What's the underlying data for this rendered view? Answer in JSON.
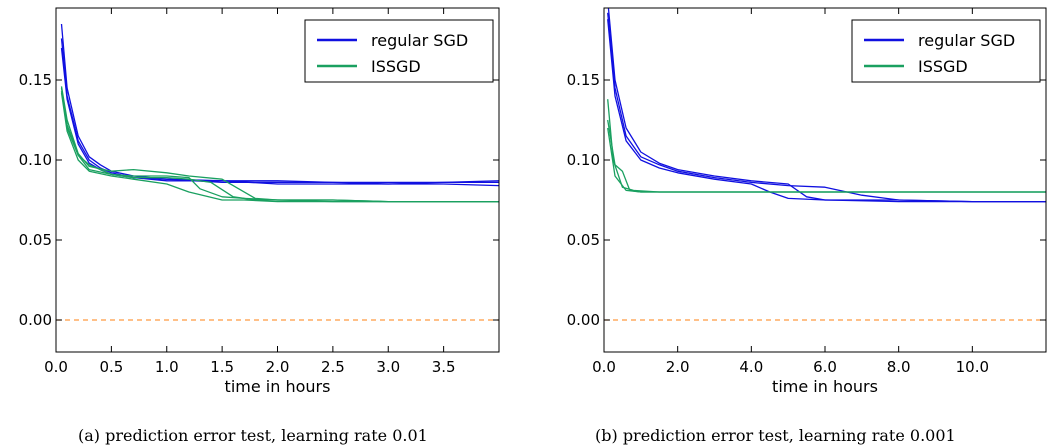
{
  "chart_data": [
    {
      "type": "line",
      "caption": "(a) prediction error test, learning rate 0.01",
      "xlabel": "time in hours",
      "ylabel": "",
      "xlim": [
        0.0,
        4.0
      ],
      "ylim": [
        -0.02,
        0.195
      ],
      "xticks": [
        0.0,
        0.5,
        1.0,
        1.5,
        2.0,
        2.5,
        3.0,
        3.5
      ],
      "xtick_labels": [
        "0.0",
        "0.5",
        "1.0",
        "1.5",
        "2.0",
        "2.5",
        "3.0",
        "3.5"
      ],
      "yticks": [
        0.0,
        0.05,
        0.1,
        0.15
      ],
      "ytick_labels": [
        "0.00",
        "0.05",
        "0.10",
        "0.15"
      ],
      "legend_position": "top-right",
      "legend": [
        {
          "name": "regular SGD",
          "color": "#1010e0"
        },
        {
          "name": "ISSGD",
          "color": "#1aa060"
        }
      ],
      "reference_line": {
        "y": 0.0,
        "color": "#ff9b40",
        "style": "dashed"
      },
      "series": [
        {
          "group": "regular SGD",
          "color": "#1010e0",
          "x": [
            0.05,
            0.1,
            0.2,
            0.3,
            0.4,
            0.5,
            0.7,
            1.0,
            1.5,
            2.0,
            2.5,
            3.0,
            3.5,
            4.0
          ],
          "y": [
            0.185,
            0.145,
            0.115,
            0.102,
            0.097,
            0.093,
            0.09,
            0.088,
            0.087,
            0.087,
            0.086,
            0.086,
            0.086,
            0.086
          ]
        },
        {
          "group": "regular SGD",
          "color": "#1010e0",
          "x": [
            0.05,
            0.1,
            0.2,
            0.3,
            0.4,
            0.5,
            0.7,
            1.0,
            1.5,
            2.0,
            2.5,
            3.0,
            3.5,
            4.0
          ],
          "y": [
            0.176,
            0.14,
            0.112,
            0.1,
            0.095,
            0.092,
            0.089,
            0.088,
            0.086,
            0.086,
            0.086,
            0.085,
            0.086,
            0.087
          ]
        },
        {
          "group": "regular SGD",
          "color": "#1010e0",
          "x": [
            0.05,
            0.1,
            0.2,
            0.3,
            0.4,
            0.5,
            0.7,
            1.0,
            1.5,
            2.0,
            2.5,
            3.0,
            3.5,
            4.0
          ],
          "y": [
            0.17,
            0.138,
            0.11,
            0.098,
            0.094,
            0.091,
            0.089,
            0.087,
            0.087,
            0.085,
            0.085,
            0.085,
            0.085,
            0.084
          ]
        },
        {
          "group": "ISSGD",
          "color": "#1aa060",
          "x": [
            0.05,
            0.1,
            0.2,
            0.3,
            0.5,
            0.7,
            1.0,
            1.2,
            1.5,
            1.8,
            2.0,
            2.5,
            3.0,
            3.5,
            4.0
          ],
          "y": [
            0.146,
            0.125,
            0.104,
            0.096,
            0.093,
            0.094,
            0.092,
            0.09,
            0.088,
            0.076,
            0.075,
            0.075,
            0.074,
            0.074,
            0.074
          ]
        },
        {
          "group": "ISSGD",
          "color": "#1aa060",
          "x": [
            0.05,
            0.1,
            0.2,
            0.3,
            0.5,
            0.7,
            1.0,
            1.2,
            1.4,
            1.6,
            1.8,
            2.0,
            2.5,
            3.0,
            3.5,
            4.0
          ],
          "y": [
            0.145,
            0.122,
            0.103,
            0.097,
            0.091,
            0.089,
            0.089,
            0.088,
            0.086,
            0.077,
            0.075,
            0.075,
            0.074,
            0.074,
            0.074,
            0.074
          ]
        },
        {
          "group": "ISSGD",
          "color": "#1aa060",
          "x": [
            0.05,
            0.1,
            0.2,
            0.3,
            0.5,
            0.7,
            1.0,
            1.2,
            1.3,
            1.5,
            1.7,
            2.0,
            2.5,
            3.0,
            3.5,
            4.0
          ],
          "y": [
            0.143,
            0.12,
            0.103,
            0.094,
            0.091,
            0.09,
            0.09,
            0.089,
            0.082,
            0.077,
            0.076,
            0.075,
            0.075,
            0.074,
            0.074,
            0.074
          ]
        },
        {
          "group": "ISSGD",
          "color": "#1aa060",
          "x": [
            0.05,
            0.1,
            0.2,
            0.3,
            0.5,
            0.7,
            1.0,
            1.2,
            1.5,
            1.7,
            2.0,
            2.5,
            3.0,
            3.5,
            4.0
          ],
          "y": [
            0.142,
            0.118,
            0.1,
            0.093,
            0.09,
            0.088,
            0.085,
            0.08,
            0.075,
            0.075,
            0.074,
            0.074,
            0.074,
            0.074,
            0.074
          ]
        }
      ]
    },
    {
      "type": "line",
      "caption": "(b) prediction error test, learning rate 0.001",
      "xlabel": "time in hours",
      "ylabel": "",
      "xlim": [
        0.0,
        12.0
      ],
      "ylim": [
        -0.02,
        0.195
      ],
      "xticks": [
        0.0,
        2.0,
        4.0,
        6.0,
        8.0,
        10.0
      ],
      "xtick_labels": [
        "0.0",
        "2.0",
        "4.0",
        "6.0",
        "8.0",
        "10.0"
      ],
      "yticks": [
        0.0,
        0.05,
        0.1,
        0.15
      ],
      "ytick_labels": [
        "0.00",
        "0.05",
        "0.10",
        "0.15"
      ],
      "legend_position": "top-right",
      "legend": [
        {
          "name": "regular SGD",
          "color": "#1010e0"
        },
        {
          "name": "ISSGD",
          "color": "#1aa060"
        }
      ],
      "reference_line": {
        "y": 0.0,
        "color": "#ff9b40",
        "style": "dashed"
      },
      "series": [
        {
          "group": "regular SGD",
          "color": "#1010e0",
          "x": [
            0.1,
            0.3,
            0.6,
            1.0,
            1.5,
            2.0,
            3.0,
            4.0,
            5.0,
            5.5,
            6.0,
            8.0,
            10.0,
            12.0
          ],
          "y": [
            0.2,
            0.15,
            0.12,
            0.105,
            0.098,
            0.094,
            0.09,
            0.087,
            0.085,
            0.077,
            0.075,
            0.075,
            0.074,
            0.074
          ]
        },
        {
          "group": "regular SGD",
          "color": "#1010e0",
          "x": [
            0.1,
            0.3,
            0.6,
            1.0,
            1.5,
            2.0,
            3.0,
            4.0,
            5.0,
            6.0,
            7.0,
            8.0,
            10.0,
            12.0
          ],
          "y": [
            0.192,
            0.145,
            0.115,
            0.102,
            0.097,
            0.093,
            0.089,
            0.086,
            0.084,
            0.083,
            0.078,
            0.075,
            0.074,
            0.074
          ]
        },
        {
          "group": "regular SGD",
          "color": "#1010e0",
          "x": [
            0.1,
            0.3,
            0.6,
            1.0,
            1.5,
            2.0,
            3.0,
            4.0,
            4.5,
            5.0,
            6.0,
            8.0,
            10.0,
            12.0
          ],
          "y": [
            0.188,
            0.14,
            0.112,
            0.1,
            0.095,
            0.092,
            0.088,
            0.085,
            0.08,
            0.076,
            0.075,
            0.074,
            0.074,
            0.074
          ]
        },
        {
          "group": "ISSGD",
          "color": "#1aa060",
          "x": [
            0.1,
            0.25,
            0.5,
            0.8,
            1.5,
            3.0,
            5.0,
            8.0,
            10.0,
            12.0
          ],
          "y": [
            0.138,
            0.1,
            0.083,
            0.081,
            0.08,
            0.08,
            0.08,
            0.08,
            0.08,
            0.08
          ]
        },
        {
          "group": "ISSGD",
          "color": "#1aa060",
          "x": [
            0.1,
            0.3,
            0.5,
            0.7,
            1.0,
            2.0,
            4.0,
            6.0,
            8.0,
            10.0,
            12.0
          ],
          "y": [
            0.125,
            0.097,
            0.093,
            0.081,
            0.08,
            0.08,
            0.08,
            0.08,
            0.08,
            0.08,
            0.08
          ]
        },
        {
          "group": "ISSGD",
          "color": "#1aa060",
          "x": [
            0.1,
            0.3,
            0.6,
            1.0,
            2.0,
            4.0,
            6.0,
            8.0,
            10.0,
            12.0
          ],
          "y": [
            0.12,
            0.09,
            0.081,
            0.08,
            0.08,
            0.08,
            0.08,
            0.08,
            0.08,
            0.08
          ]
        }
      ]
    }
  ]
}
